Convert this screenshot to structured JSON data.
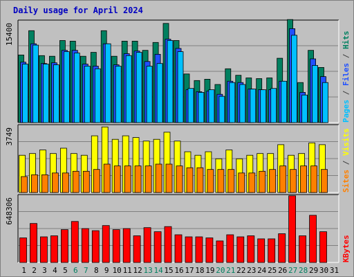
{
  "chart_data": {
    "type": "bar",
    "title": "Daily usage for April 2024",
    "categories": [
      "1",
      "2",
      "3",
      "4",
      "5",
      "6",
      "7",
      "8",
      "9",
      "10",
      "11",
      "12",
      "13",
      "14",
      "15",
      "16",
      "17",
      "18",
      "19",
      "20",
      "21",
      "22",
      "23",
      "24",
      "25",
      "26",
      "27",
      "28",
      "29",
      "30",
      "31"
    ],
    "weekend_days": [
      "6",
      "7",
      "13",
      "14",
      "20",
      "21",
      "27",
      "28"
    ],
    "panels": [
      {
        "id": "top",
        "max_label": "15400",
        "ymax": 15400,
        "right_labels": [
          {
            "text": "Pages",
            "color": "#00c0ff"
          },
          {
            "text": " / ",
            "color": "#404040"
          },
          {
            "text": "Files",
            "color": "#2050ff"
          },
          {
            "text": " / ",
            "color": "#404040"
          },
          {
            "text": "Hits",
            "color": "#008060"
          }
        ],
        "series": [
          {
            "name": "Hits",
            "color": "#008060",
            "values": [
              10300,
              14000,
              10200,
              10100,
              12500,
              12400,
              10100,
              10700,
              14000,
              10100,
              12400,
              12400,
              11000,
              12200,
              15100,
              12500,
              7400,
              6400,
              6600,
              5800,
              8200,
              7200,
              6800,
              6700,
              6800,
              9800,
              15700,
              6100,
              11000,
              8400,
              0
            ]
          },
          {
            "name": "Files",
            "color": "#2050ff",
            "values": [
              9200,
              12000,
              9000,
              9100,
              11000,
              11000,
              8900,
              8600,
              12000,
              8800,
              10500,
              10900,
              9300,
              10400,
              12700,
              11300,
              5000,
              4700,
              4800,
              4300,
              6300,
              6100,
              5100,
              5000,
              5000,
              6300,
              14300,
              4600,
              9700,
              7000,
              0
            ]
          },
          {
            "name": "Pages",
            "color": "#00c0ff",
            "values": [
              8900,
              11800,
              8900,
              8800,
              10800,
              10600,
              8600,
              8200,
              12000,
              8600,
              10200,
              10700,
              8600,
              9000,
              12500,
              10800,
              5200,
              4600,
              5000,
              4000,
              6100,
              5800,
              5100,
              5000,
              5200,
              6300,
              13300,
              4200,
              8700,
              6100,
              0
            ]
          }
        ]
      },
      {
        "id": "middle",
        "max_label": "3749",
        "ymax": 3749,
        "right_labels": [
          {
            "text": "Sites",
            "color": "#ff8000"
          },
          {
            "text": " / ",
            "color": "#404040"
          },
          {
            "text": "Visits",
            "color": "#ffff00"
          }
        ],
        "series": [
          {
            "name": "Visits",
            "color": "#ffff00",
            "values": [
              2100,
              2200,
              2400,
              2200,
              2500,
              2200,
              2100,
              3200,
              3700,
              3000,
              3200,
              3100,
              2900,
              3000,
              3400,
              2900,
              2300,
              2100,
              2300,
              1900,
              2400,
              1900,
              2100,
              2200,
              2200,
              2700,
              2100,
              2200,
              2800,
              2700,
              0
            ]
          },
          {
            "name": "Sites",
            "color": "#ff8000",
            "values": [
              900,
              1000,
              1000,
              1100,
              1100,
              1200,
              1200,
              1300,
              1600,
              1500,
              1500,
              1500,
              1500,
              1600,
              1600,
              1500,
              1400,
              1400,
              1300,
              1300,
              1300,
              1100,
              1100,
              1200,
              1300,
              1500,
              1300,
              1500,
              1500,
              1300,
              0
            ]
          }
        ]
      },
      {
        "id": "bottom",
        "max_label": "648306",
        "ymax": 648306,
        "right_labels": [
          {
            "text": "KBytes",
            "color": "#ff0000"
          }
        ],
        "series": [
          {
            "name": "KBytes",
            "color": "#ff0000",
            "values": [
              240000,
              380000,
              250000,
              260000,
              320000,
              400000,
              330000,
              310000,
              360000,
              320000,
              330000,
              260000,
              340000,
              300000,
              350000,
              270000,
              250000,
              250000,
              240000,
              210000,
              270000,
              250000,
              260000,
              230000,
              230000,
              280000,
              650000,
              260000,
              460000,
              300000,
              0
            ]
          }
        ]
      }
    ]
  }
}
